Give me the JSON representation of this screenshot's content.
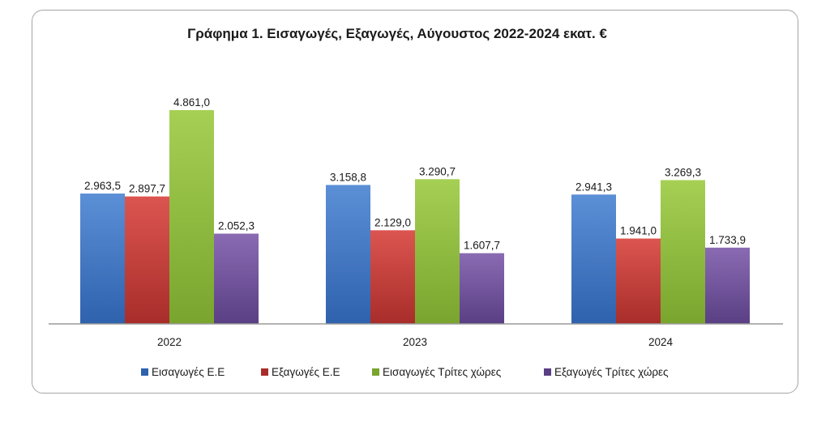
{
  "chart_data": {
    "type": "bar",
    "title": "Γράφημα 1. Εισαγωγές, Εξαγωγές, Αύγουστος 2022-2024 εκατ. €",
    "xlabel": "",
    "ylabel": "",
    "categories": [
      "2022",
      "2023",
      "2024"
    ],
    "series": [
      {
        "name": "Εισαγωγές Ε.Ε",
        "color": "#3a6fbd",
        "values": [
          2963.5,
          3158.8,
          2941.3
        ],
        "labels": [
          "2.963,5",
          "3.158,8",
          "2.941,3"
        ]
      },
      {
        "name": "Εξαγωγές  Ε.Ε",
        "color": "#c23b37",
        "values": [
          2897.7,
          2129.0,
          1941.0
        ],
        "labels": [
          "2.897,7",
          "2.129,0",
          "1.941,0"
        ]
      },
      {
        "name": "Εισαγωγές Τρίτες χώρες",
        "color": "#8cb83c",
        "values": [
          4861.0,
          3290.7,
          3269.3
        ],
        "labels": [
          "4.861,0",
          "3.290,7",
          "3.269,3"
        ]
      },
      {
        "name": "Εξαγωγές Τρίτες χώρες",
        "color": "#6b4d96",
        "values": [
          2052.3,
          1607.7,
          1733.9
        ],
        "labels": [
          "2.052,3",
          "1.607,7",
          "1.733,9"
        ]
      }
    ],
    "ylim": [
      0,
      4861
    ],
    "grid": false,
    "legend_position": "bottom"
  }
}
